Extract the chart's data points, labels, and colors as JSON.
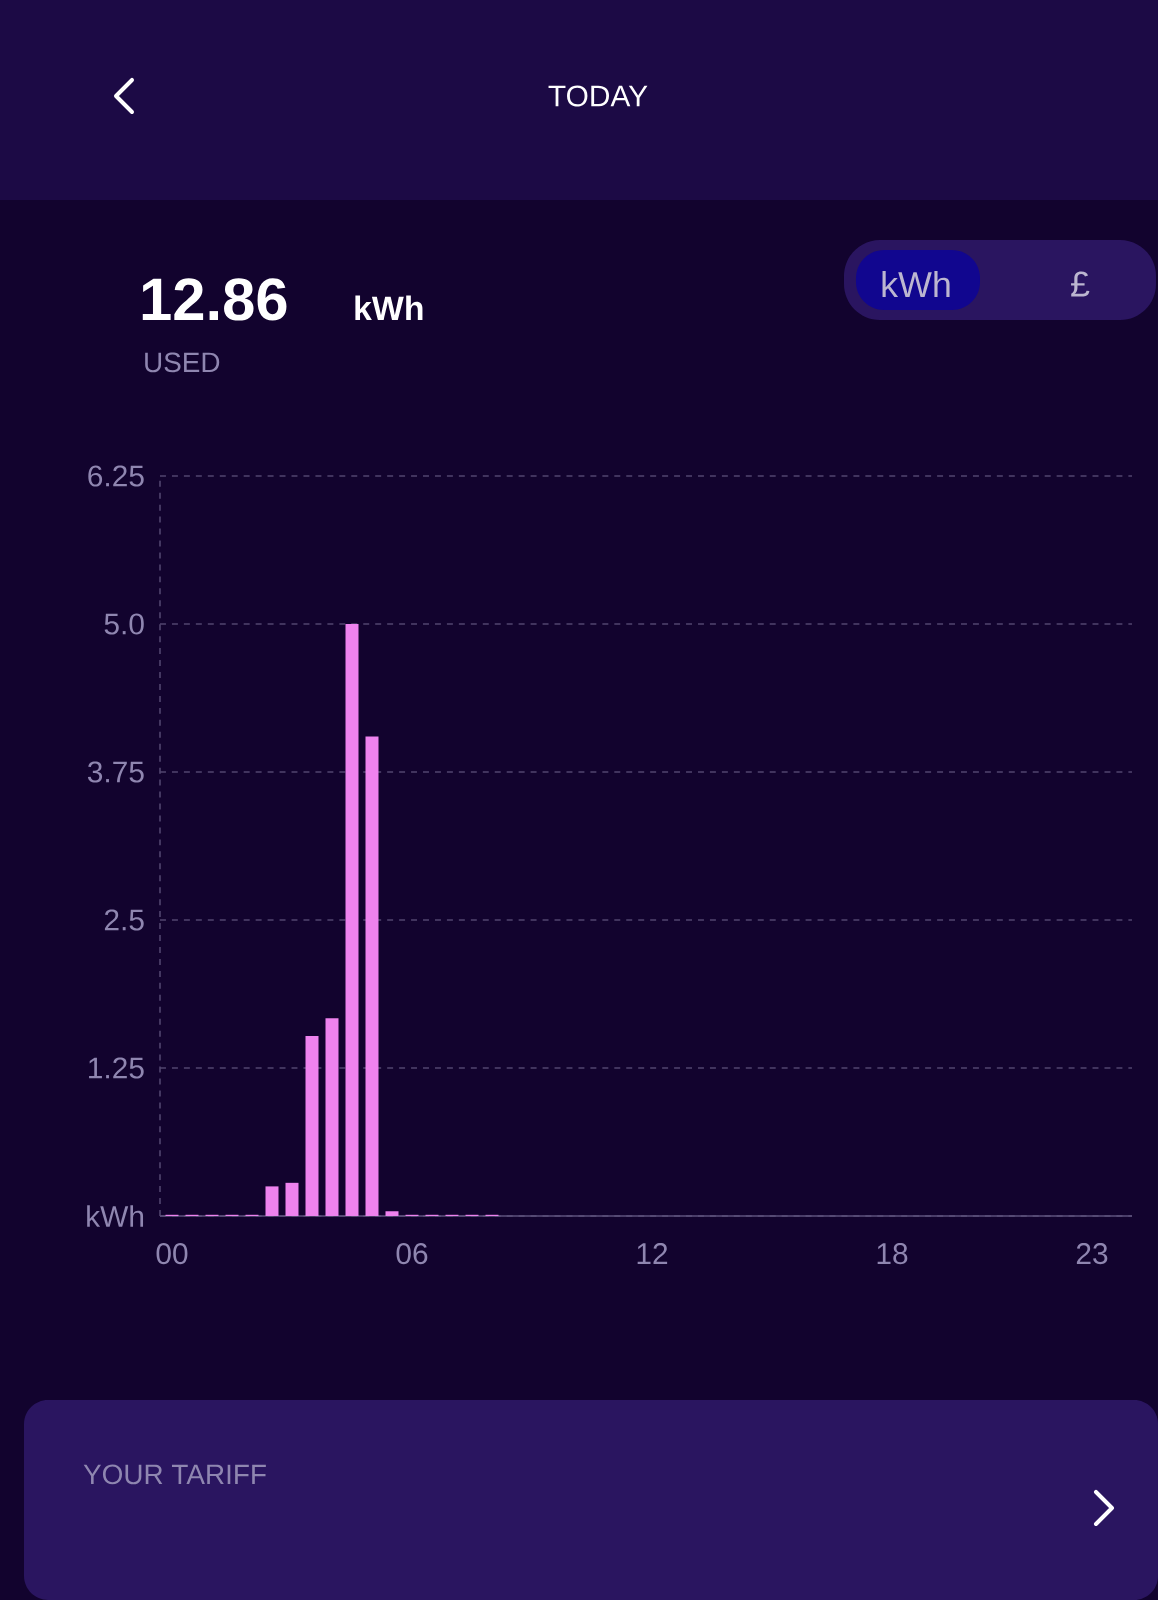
{
  "chart_data": {
    "type": "bar",
    "title": "TODAY",
    "x": [
      0,
      0.5,
      1,
      1.5,
      2,
      2.5,
      3,
      3.5,
      4,
      4.5,
      5,
      5.5,
      6,
      6.5,
      7,
      7.5,
      8
    ],
    "values": [
      0.01,
      0.01,
      0.01,
      0.01,
      0.01,
      0.25,
      0.28,
      1.52,
      1.67,
      5.0,
      4.05,
      0.04,
      0.01,
      0.01,
      0.01,
      0.01,
      0.01
    ],
    "color": "#ee82ee",
    "xlim": [
      -0.3,
      24
    ],
    "xticks": [
      {
        "value": 0,
        "label": "00"
      },
      {
        "value": 6,
        "label": "06"
      },
      12,
      18,
      23
    ],
    "ylim": [
      0,
      6.25
    ],
    "yticks": [
      {
        "value": 0,
        "label": "kWh"
      },
      1.25,
      2.5,
      3.75,
      {
        "value": 5,
        "label": "5.0"
      },
      6.25
    ],
    "grid": "y",
    "annotations": [
      "12.86",
      "kWh",
      "USED",
      "kWh",
      "£",
      "YOUR TARIFF"
    ]
  }
}
